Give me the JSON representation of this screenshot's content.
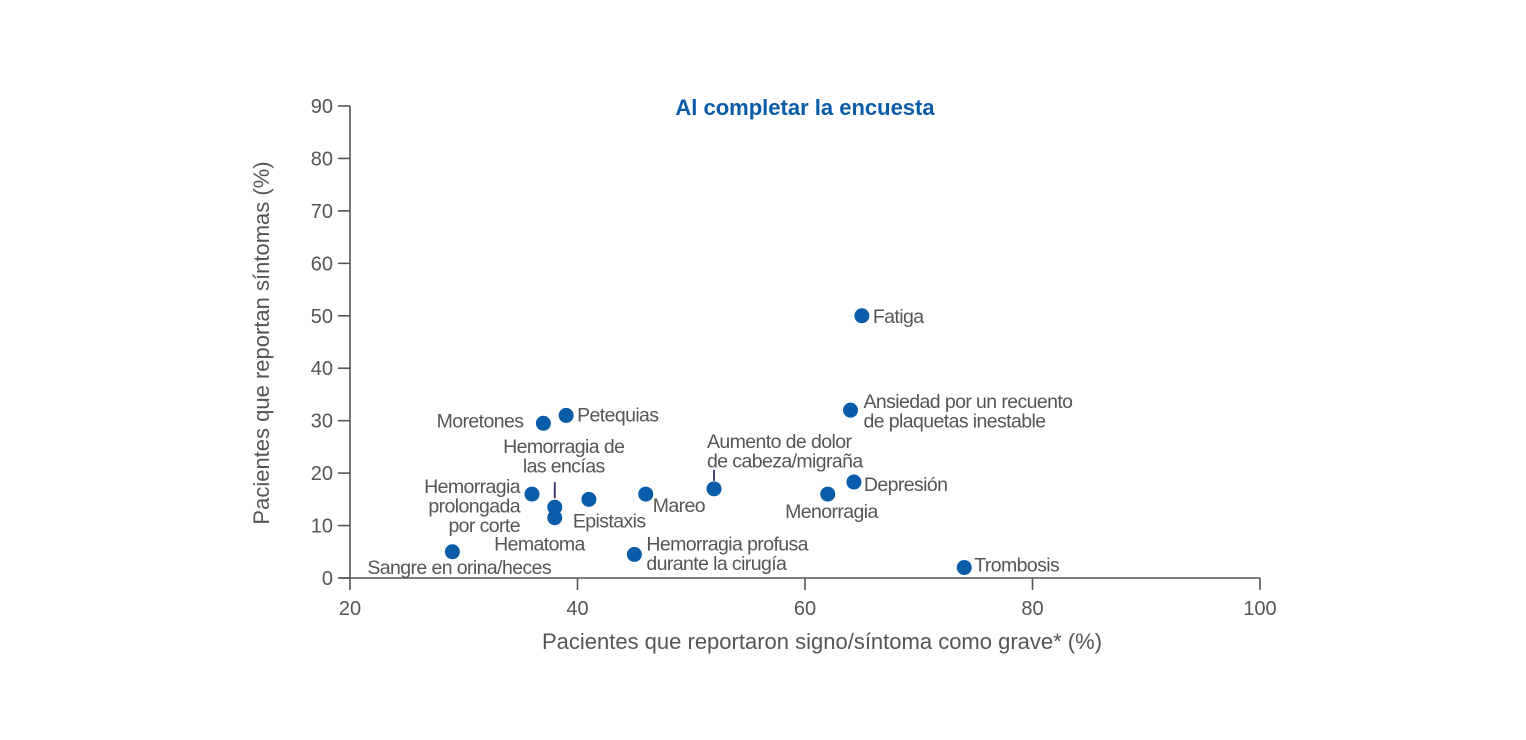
{
  "colors": {
    "point": "#0a5ca8",
    "title": "#0a5ca8",
    "axis": "#555555",
    "text": "#555555",
    "leader": "#3b2a6b"
  },
  "chart_data": {
    "type": "scatter",
    "title": "Al completar la encuesta",
    "xlabel": "Pacientes que reportaron signo/síntoma como grave* (%)",
    "ylabel": "Pacientes que reportan síntomas (%)",
    "xlim": [
      20,
      100
    ],
    "ylim": [
      0,
      90
    ],
    "xticks": [
      "20",
      "40",
      "60",
      "80",
      "100"
    ],
    "yticks": [
      "0",
      "10",
      "20",
      "30",
      "40",
      "50",
      "60",
      "70",
      "80",
      "90"
    ],
    "grid": false,
    "legend": "none",
    "points": [
      {
        "label": "Fatiga",
        "x": 65,
        "y": 50
      },
      {
        "label": "Ansiedad por un recuento de plaquetas inestable",
        "x": 64,
        "y": 32
      },
      {
        "label": "Moretones",
        "x": 37,
        "y": 29.5
      },
      {
        "label": "Petequias",
        "x": 39,
        "y": 31
      },
      {
        "label": "Depresión",
        "x": 64.3,
        "y": 18.3
      },
      {
        "label": "Aumento de dolor de cabeza/migraña",
        "x": 52,
        "y": 17
      },
      {
        "label": "Mareo",
        "x": 46,
        "y": 16
      },
      {
        "label": "Menorragia",
        "x": 62,
        "y": 16
      },
      {
        "label": "Hemorragia prolongada por corte",
        "x": 36,
        "y": 16
      },
      {
        "label": "Epistaxis",
        "x": 41,
        "y": 15
      },
      {
        "label": "Hemorragia de las encías",
        "x": 38,
        "y": 13.5
      },
      {
        "label": "Hematoma",
        "x": 38,
        "y": 11.5
      },
      {
        "label": "Sangre en orina/heces",
        "x": 29,
        "y": 5
      },
      {
        "label": "Hemorragia profusa durante la cirugía",
        "x": 45,
        "y": 4.5
      },
      {
        "label": "Trombosis",
        "x": 74,
        "y": 2
      }
    ]
  }
}
